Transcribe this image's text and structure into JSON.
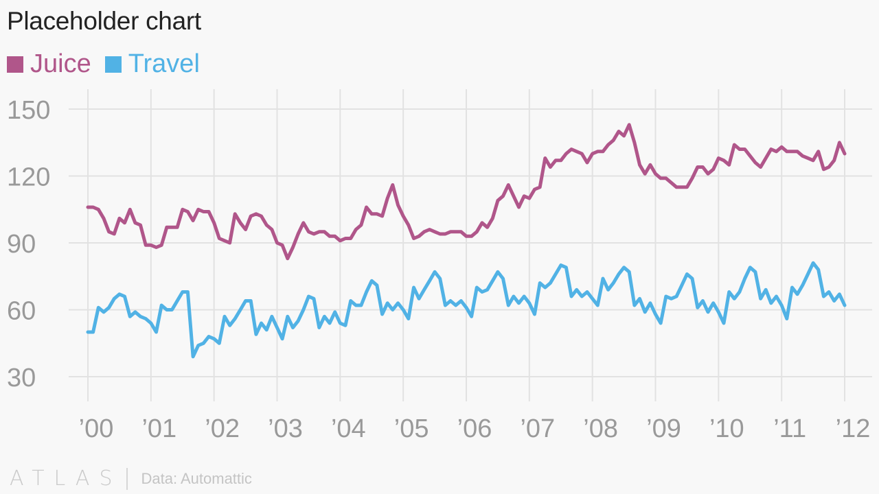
{
  "title": "Placeholder chart",
  "legend": [
    {
      "label": "Juice",
      "color": "#b0568a"
    },
    {
      "label": "Travel",
      "color": "#51b2e5"
    }
  ],
  "footer": {
    "logo": "ATLAS",
    "source": "Data: Automattic"
  },
  "chart_data": {
    "type": "line",
    "title": "Placeholder chart",
    "xlabel": "",
    "ylabel": "",
    "x_tick_labels": [
      "’00",
      "’01",
      "’02",
      "’03",
      "’04",
      "’05",
      "’06",
      "’07",
      "’08",
      "’09",
      "’10",
      "’11",
      "’12"
    ],
    "y_ticks": [
      30,
      60,
      90,
      120,
      150
    ],
    "xlim": [
      2000,
      2012
    ],
    "ylim": [
      30,
      150
    ],
    "grid": true,
    "legend_position": "top-left",
    "series": [
      {
        "name": "Juice",
        "color": "#b0568a",
        "x": [
          2000.0,
          2000.083,
          2000.167,
          2000.25,
          2000.333,
          2000.417,
          2000.5,
          2000.583,
          2000.667,
          2000.75,
          2000.833,
          2000.917,
          2001.0,
          2001.083,
          2001.167,
          2001.25,
          2001.333,
          2001.417,
          2001.5,
          2001.583,
          2001.667,
          2001.75,
          2001.833,
          2001.917,
          2002.0,
          2002.083,
          2002.167,
          2002.25,
          2002.333,
          2002.417,
          2002.5,
          2002.583,
          2002.667,
          2002.75,
          2002.833,
          2002.917,
          2003.0,
          2003.083,
          2003.167,
          2003.25,
          2003.333,
          2003.417,
          2003.5,
          2003.583,
          2003.667,
          2003.75,
          2003.833,
          2003.917,
          2004.0,
          2004.083,
          2004.167,
          2004.25,
          2004.333,
          2004.417,
          2004.5,
          2004.583,
          2004.667,
          2004.75,
          2004.833,
          2004.917,
          2005.0,
          2005.083,
          2005.167,
          2005.25,
          2005.333,
          2005.417,
          2005.5,
          2005.583,
          2005.667,
          2005.75,
          2005.833,
          2005.917,
          2006.0,
          2006.083,
          2006.167,
          2006.25,
          2006.333,
          2006.417,
          2006.5,
          2006.583,
          2006.667,
          2006.75,
          2006.833,
          2006.917,
          2007.0,
          2007.083,
          2007.167,
          2007.25,
          2007.333,
          2007.417,
          2007.5,
          2007.583,
          2007.667,
          2007.75,
          2007.833,
          2007.917,
          2008.0,
          2008.083,
          2008.167,
          2008.25,
          2008.333,
          2008.417,
          2008.5,
          2008.583,
          2008.667,
          2008.75,
          2008.833,
          2008.917,
          2009.0,
          2009.083,
          2009.167,
          2009.25,
          2009.333,
          2009.417,
          2009.5,
          2009.583,
          2009.667,
          2009.75,
          2009.833,
          2009.917,
          2010.0,
          2010.083,
          2010.167,
          2010.25,
          2010.333,
          2010.417,
          2010.5,
          2010.583,
          2010.667,
          2010.75,
          2010.833,
          2010.917,
          2011.0,
          2011.083,
          2011.167,
          2011.25,
          2011.333,
          2011.417,
          2011.5,
          2011.583,
          2011.667,
          2011.75,
          2011.833,
          2011.917,
          2012.0
        ],
        "values": [
          106,
          106,
          105,
          101,
          95,
          94,
          101,
          99,
          105,
          99,
          98,
          89,
          89,
          88,
          89,
          97,
          97,
          97,
          105,
          104,
          100,
          105,
          104,
          104,
          99,
          92,
          91,
          90,
          103,
          99,
          96,
          102,
          103,
          102,
          98,
          96,
          90,
          89,
          83,
          88,
          94,
          99,
          95,
          94,
          95,
          95,
          93,
          93,
          91,
          92,
          92,
          96,
          98,
          106,
          103,
          103,
          102,
          110,
          116,
          107,
          102,
          98,
          92,
          93,
          95,
          96,
          95,
          94,
          94,
          95,
          95,
          95,
          93,
          93,
          95,
          99,
          97,
          101,
          109,
          111,
          116,
          111,
          106,
          111,
          110,
          114,
          115,
          128,
          124,
          127,
          127,
          130,
          132,
          131,
          130,
          126,
          130,
          131,
          131,
          134,
          136,
          140,
          138,
          143,
          135,
          125,
          121,
          125,
          121,
          119,
          119,
          117,
          115,
          115,
          115,
          119,
          124,
          124,
          121,
          123,
          128,
          127,
          125,
          134,
          132,
          132,
          129,
          126,
          124,
          128,
          132,
          131,
          133,
          131,
          131,
          131,
          129,
          128,
          127,
          131,
          123,
          124,
          127,
          135,
          130
        ]
      },
      {
        "name": "Travel",
        "color": "#51b2e5",
        "x": [
          2000.0,
          2000.083,
          2000.167,
          2000.25,
          2000.333,
          2000.417,
          2000.5,
          2000.583,
          2000.667,
          2000.75,
          2000.833,
          2000.917,
          2001.0,
          2001.083,
          2001.167,
          2001.25,
          2001.333,
          2001.417,
          2001.5,
          2001.583,
          2001.667,
          2001.75,
          2001.833,
          2001.917,
          2002.0,
          2002.083,
          2002.167,
          2002.25,
          2002.333,
          2002.417,
          2002.5,
          2002.583,
          2002.667,
          2002.75,
          2002.833,
          2002.917,
          2003.0,
          2003.083,
          2003.167,
          2003.25,
          2003.333,
          2003.417,
          2003.5,
          2003.583,
          2003.667,
          2003.75,
          2003.833,
          2003.917,
          2004.0,
          2004.083,
          2004.167,
          2004.25,
          2004.333,
          2004.417,
          2004.5,
          2004.583,
          2004.667,
          2004.75,
          2004.833,
          2004.917,
          2005.0,
          2005.083,
          2005.167,
          2005.25,
          2005.333,
          2005.417,
          2005.5,
          2005.583,
          2005.667,
          2005.75,
          2005.833,
          2005.917,
          2006.0,
          2006.083,
          2006.167,
          2006.25,
          2006.333,
          2006.417,
          2006.5,
          2006.583,
          2006.667,
          2006.75,
          2006.833,
          2006.917,
          2007.0,
          2007.083,
          2007.167,
          2007.25,
          2007.333,
          2007.417,
          2007.5,
          2007.583,
          2007.667,
          2007.75,
          2007.833,
          2007.917,
          2008.0,
          2008.083,
          2008.167,
          2008.25,
          2008.333,
          2008.417,
          2008.5,
          2008.583,
          2008.667,
          2008.75,
          2008.833,
          2008.917,
          2009.0,
          2009.083,
          2009.167,
          2009.25,
          2009.333,
          2009.417,
          2009.5,
          2009.583,
          2009.667,
          2009.75,
          2009.833,
          2009.917,
          2010.0,
          2010.083,
          2010.167,
          2010.25,
          2010.333,
          2010.417,
          2010.5,
          2010.583,
          2010.667,
          2010.75,
          2010.833,
          2010.917,
          2011.0,
          2011.083,
          2011.167,
          2011.25,
          2011.333,
          2011.417,
          2011.5,
          2011.583,
          2011.667,
          2011.75,
          2011.833,
          2011.917,
          2012.0
        ],
        "values": [
          50,
          50,
          61,
          59,
          61,
          65,
          67,
          66,
          57,
          59,
          57,
          56,
          54,
          50,
          62,
          60,
          60,
          64,
          68,
          68,
          39,
          44,
          45,
          48,
          47,
          45,
          57,
          53,
          56,
          60,
          64,
          64,
          49,
          54,
          51,
          57,
          52,
          47,
          57,
          52,
          55,
          60,
          66,
          65,
          52,
          57,
          54,
          59,
          54,
          53,
          64,
          62,
          62,
          68,
          73,
          71,
          58,
          63,
          60,
          63,
          60,
          56,
          70,
          65,
          69,
          73,
          77,
          74,
          62,
          64,
          62,
          64,
          61,
          57,
          70,
          68,
          69,
          73,
          77,
          74,
          62,
          66,
          63,
          66,
          63,
          58,
          72,
          70,
          72,
          76,
          80,
          79,
          66,
          69,
          66,
          68,
          65,
          62,
          74,
          69,
          72,
          76,
          79,
          77,
          62,
          65,
          59,
          63,
          58,
          54,
          66,
          65,
          66,
          71,
          76,
          74,
          61,
          64,
          59,
          63,
          59,
          54,
          68,
          65,
          68,
          74,
          79,
          77,
          65,
          69,
          63,
          66,
          62,
          56,
          70,
          67,
          71,
          76,
          81,
          78,
          66,
          68,
          64,
          67,
          62
        ]
      }
    ]
  }
}
